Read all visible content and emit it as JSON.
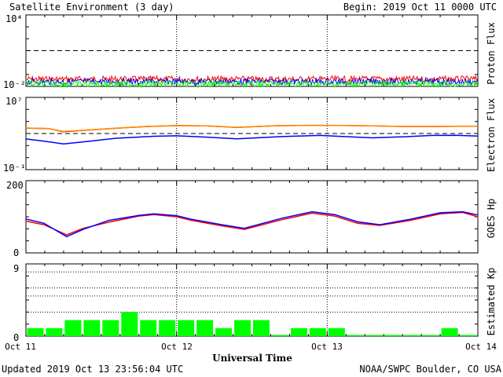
{
  "header": {
    "title": "Satellite Environment (3 day)",
    "begin": "Begin:  2019 Oct 11 0000 UTC"
  },
  "footer": {
    "updated": "Updated 2019 Oct 13 23:56:04 UTC",
    "credit": "NOAA/SWPC Boulder, CO USA"
  },
  "xaxis": {
    "title": "Universal Time",
    "ticks": [
      "Oct 11",
      "Oct 12",
      "Oct 13",
      "Oct 14"
    ]
  },
  "chart_data": [
    {
      "type": "line",
      "ylabel": "Proton Flux",
      "ytick_labels": {
        "top": "10⁴",
        "bottom": "10⁻²"
      },
      "ylim": [
        0.01,
        10000
      ],
      "yscale": "log",
      "x_days": [
        0,
        3
      ],
      "threshold": 10,
      "series": [
        {
          "color": "#ff0000",
          "values_flat": 0.04
        },
        {
          "color": "#0000ff",
          "values_flat": 0.025
        },
        {
          "color": "#00ff00",
          "values_flat": 0.016
        }
      ]
    },
    {
      "type": "line",
      "ylabel": "Electron Flux",
      "ytick_labels": {
        "top": "10⁷",
        "bottom": "10⁻¹"
      },
      "ylim": [
        0.1,
        10000000
      ],
      "yscale": "log",
      "threshold": 1000,
      "series": [
        {
          "color": "#ff0000",
          "x": [
            0,
            0.15,
            0.25,
            0.4,
            0.6,
            0.8,
            1.0,
            1.2,
            1.4,
            1.65,
            1.9,
            2.1,
            2.3,
            2.5,
            2.7,
            2.9,
            3.0
          ],
          "y": [
            4000,
            3500,
            1600,
            2300,
            3800,
            6000,
            7500,
            7000,
            4800,
            7200,
            8000,
            7800,
            7000,
            6000,
            6000,
            6500,
            6500
          ]
        },
        {
          "color": "#ff8c00",
          "x": [
            0,
            0.15,
            0.25,
            0.4,
            0.6,
            0.8,
            1.0,
            1.2,
            1.4,
            1.65,
            1.9,
            2.1,
            2.3,
            2.5,
            2.7,
            2.9,
            3.0
          ],
          "y": [
            4100,
            3600,
            1700,
            2400,
            3900,
            6100,
            7600,
            7100,
            4900,
            7300,
            8100,
            7900,
            7100,
            6100,
            6100,
            6600,
            6600
          ]
        },
        {
          "color": "#0000ff",
          "x": [
            0,
            0.1,
            0.25,
            0.4,
            0.6,
            0.85,
            1.0,
            1.2,
            1.4,
            1.7,
            1.95,
            2.1,
            2.3,
            2.5,
            2.7,
            2.85,
            3.0
          ],
          "y": [
            250,
            160,
            70,
            130,
            300,
            500,
            560,
            400,
            260,
            460,
            620,
            470,
            330,
            430,
            620,
            640,
            520
          ]
        }
      ]
    },
    {
      "type": "line",
      "ylabel": "GOES Hp",
      "ytick_labels": {
        "top": "200",
        "bottom": "0"
      },
      "ylim": [
        0,
        200
      ],
      "series": [
        {
          "color": "#ff0000",
          "x": [
            0,
            0.12,
            0.27,
            0.38,
            0.55,
            0.75,
            0.85,
            1.0,
            1.1,
            1.3,
            1.45,
            1.7,
            1.9,
            2.05,
            2.2,
            2.35,
            2.55,
            2.75,
            2.9,
            3.0
          ],
          "y": [
            88,
            78,
            50,
            68,
            85,
            102,
            106,
            100,
            90,
            75,
            65,
            92,
            110,
            102,
            82,
            76,
            90,
            108,
            112,
            100
          ]
        },
        {
          "color": "#0000ff",
          "x": [
            0,
            0.12,
            0.27,
            0.38,
            0.55,
            0.75,
            0.85,
            1.0,
            1.1,
            1.3,
            1.45,
            1.7,
            1.9,
            2.05,
            2.2,
            2.35,
            2.55,
            2.75,
            2.9,
            3.0
          ],
          "y": [
            94,
            82,
            45,
            65,
            90,
            104,
            108,
            103,
            93,
            78,
            68,
            96,
            114,
            106,
            86,
            78,
            93,
            111,
            114,
            105
          ]
        }
      ]
    },
    {
      "type": "bar",
      "ylabel": "Estimated Kp",
      "ytick_labels": {
        "top": "9",
        "bottom": "0"
      },
      "ylim": [
        0,
        9
      ],
      "color": "#00ff00",
      "values": [
        1,
        1,
        2,
        2,
        2,
        3,
        2,
        2,
        2,
        2,
        1,
        2,
        2,
        0,
        1,
        1,
        1,
        0,
        0,
        0,
        0,
        0,
        1,
        0
      ]
    }
  ]
}
